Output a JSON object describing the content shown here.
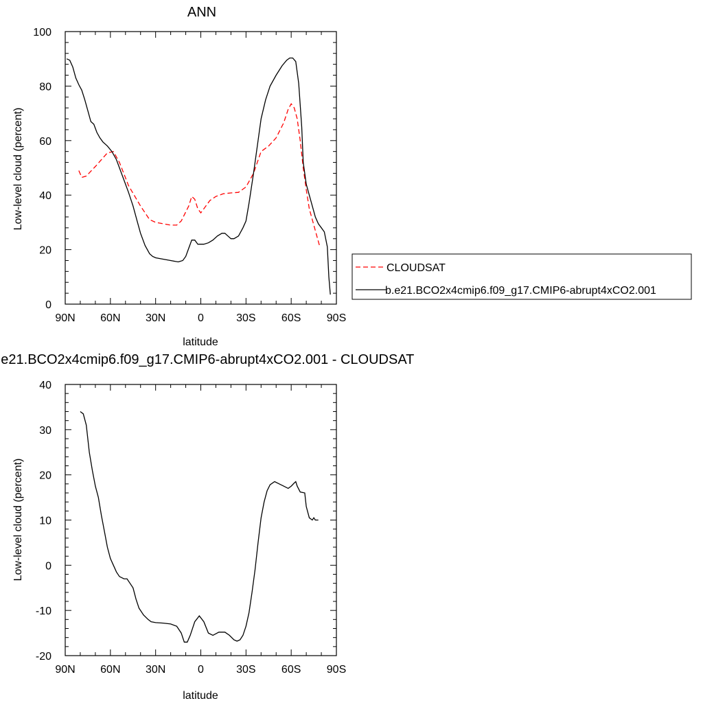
{
  "chart_data": [
    {
      "type": "line",
      "title": "ANN",
      "xlabel": "latitude",
      "ylabel": "Low-level cloud (percent)",
      "xlim": [
        90,
        -90
      ],
      "ylim": [
        0,
        100
      ],
      "x_ticks": [
        90,
        60,
        30,
        0,
        -30,
        -60,
        -90
      ],
      "x_tick_labels": [
        "90N",
        "60N",
        "30N",
        "0",
        "30S",
        "60S",
        "90S"
      ],
      "y_ticks": [
        0,
        20,
        40,
        60,
        80,
        100
      ],
      "y_tick_labels": [
        "0",
        "20",
        "40",
        "60",
        "80",
        "100"
      ],
      "legend_position": "right",
      "series": [
        {
          "name": "CLOUDSAT",
          "color": "#ff0000",
          "dash": "dashed",
          "points": [
            [
              81,
              49
            ],
            [
              79,
              46.5
            ],
            [
              76,
              47
            ],
            [
              70,
              50.5
            ],
            [
              62,
              55.5
            ],
            [
              58,
              56
            ],
            [
              54,
              52
            ],
            [
              48,
              43.5
            ],
            [
              40,
              36
            ],
            [
              34,
              31
            ],
            [
              30,
              30
            ],
            [
              25,
              29.5
            ],
            [
              20,
              29
            ],
            [
              16,
              29
            ],
            [
              13,
              30.5
            ],
            [
              8,
              36
            ],
            [
              6,
              39.5
            ],
            [
              4,
              38.5
            ],
            [
              2,
              35
            ],
            [
              0,
              33.5
            ],
            [
              -2,
              35
            ],
            [
              -6,
              38
            ],
            [
              -10,
              39.5
            ],
            [
              -15,
              40.5
            ],
            [
              -20,
              40.8
            ],
            [
              -25,
              41
            ],
            [
              -30,
              43
            ],
            [
              -35,
              48
            ],
            [
              -40,
              56
            ],
            [
              -45,
              58
            ],
            [
              -50,
              61
            ],
            [
              -55,
              66.5
            ],
            [
              -58,
              71.5
            ],
            [
              -60,
              73.5
            ],
            [
              -62,
              72
            ],
            [
              -64,
              68
            ],
            [
              -66,
              60
            ],
            [
              -68,
              50
            ],
            [
              -70,
              42
            ],
            [
              -72,
              35
            ],
            [
              -75,
              29
            ],
            [
              -79,
              21
            ]
          ]
        },
        {
          "name": "b.e21.BCO2x4cmip6.f09_g17.CMIP6-abrupt4xCO2.001",
          "color": "#000000",
          "dash": "solid",
          "points": [
            [
              89,
              90
            ],
            [
              87,
              89.5
            ],
            [
              85,
              87
            ],
            [
              83,
              83
            ],
            [
              81,
              80.5
            ],
            [
              79,
              78.5
            ],
            [
              77,
              75
            ],
            [
              75,
              71
            ],
            [
              73,
              67
            ],
            [
              71,
              66
            ],
            [
              69,
              63
            ],
            [
              67,
              61
            ],
            [
              65,
              59.5
            ],
            [
              62,
              58
            ],
            [
              59,
              56
            ],
            [
              56,
              53
            ],
            [
              52,
              47
            ],
            [
              48,
              41
            ],
            [
              45,
              36
            ],
            [
              42,
              30
            ],
            [
              40,
              26
            ],
            [
              37,
              21.5
            ],
            [
              34,
              18.5
            ],
            [
              32,
              17.5
            ],
            [
              30,
              17
            ],
            [
              25,
              16.5
            ],
            [
              20,
              16
            ],
            [
              15,
              15.5
            ],
            [
              12,
              16
            ],
            [
              10,
              17.5
            ],
            [
              8,
              20.5
            ],
            [
              6,
              23.5
            ],
            [
              4,
              23.5
            ],
            [
              2,
              22
            ],
            [
              0,
              22
            ],
            [
              -2,
              22
            ],
            [
              -5,
              22.5
            ],
            [
              -8,
              23.5
            ],
            [
              -11,
              25
            ],
            [
              -14,
              26
            ],
            [
              -16,
              26
            ],
            [
              -18,
              25
            ],
            [
              -20,
              24
            ],
            [
              -22,
              24
            ],
            [
              -25,
              25
            ],
            [
              -28,
              28
            ],
            [
              -30,
              30.5
            ],
            [
              -32,
              37
            ],
            [
              -35,
              48
            ],
            [
              -38,
              60
            ],
            [
              -40,
              68
            ],
            [
              -43,
              75
            ],
            [
              -46,
              80
            ],
            [
              -50,
              84
            ],
            [
              -54,
              87.5
            ],
            [
              -57,
              89.5
            ],
            [
              -59,
              90.3
            ],
            [
              -61,
              90.3
            ],
            [
              -63,
              89
            ],
            [
              -65,
              81
            ],
            [
              -67,
              65
            ],
            [
              -68,
              52
            ],
            [
              -70,
              44
            ],
            [
              -72,
              40
            ],
            [
              -74,
              36
            ],
            [
              -76,
              32
            ],
            [
              -78,
              29.5
            ],
            [
              -80,
              28
            ],
            [
              -82,
              26.5
            ],
            [
              -84,
              21
            ],
            [
              -85,
              10
            ],
            [
              -86,
              3.5
            ]
          ]
        }
      ]
    },
    {
      "type": "line",
      "title": "b.e21.BCO2x4cmip6.f09_g17.CMIP6-abrupt4xCO2.001 - CLOUDSAT",
      "xlabel": "latitude",
      "ylabel": "Low-level cloud (percent)",
      "xlim": [
        90,
        -90
      ],
      "ylim": [
        -20,
        40
      ],
      "x_ticks": [
        90,
        60,
        30,
        0,
        -30,
        -60,
        -90
      ],
      "x_tick_labels": [
        "90N",
        "60N",
        "30N",
        "0",
        "30S",
        "60S",
        "90S"
      ],
      "y_ticks": [
        -20,
        -10,
        0,
        10,
        20,
        30,
        40
      ],
      "y_tick_labels": [
        "-20",
        "-10",
        "0",
        "10",
        "20",
        "30",
        "40"
      ],
      "series": [
        {
          "color": "#000000",
          "dash": "solid",
          "points": [
            [
              80,
              34
            ],
            [
              78,
              33.5
            ],
            [
              76,
              31
            ],
            [
              74,
              25
            ],
            [
              72,
              21
            ],
            [
              70,
              17.5
            ],
            [
              68,
              15
            ],
            [
              66,
              11
            ],
            [
              64,
              7.5
            ],
            [
              62,
              4
            ],
            [
              60,
              1.5
            ],
            [
              58,
              0
            ],
            [
              56,
              -1.5
            ],
            [
              54,
              -2.5
            ],
            [
              51,
              -3
            ],
            [
              49,
              -3
            ],
            [
              47,
              -4
            ],
            [
              45,
              -5
            ],
            [
              43,
              -7.5
            ],
            [
              41,
              -9.5
            ],
            [
              38,
              -11
            ],
            [
              35,
              -12
            ],
            [
              33,
              -12.5
            ],
            [
              30,
              -12.7
            ],
            [
              25,
              -12.8
            ],
            [
              20,
              -13
            ],
            [
              16,
              -13.5
            ],
            [
              13,
              -15
            ],
            [
              11,
              -17
            ],
            [
              9,
              -17
            ],
            [
              7,
              -15.5
            ],
            [
              4,
              -12.5
            ],
            [
              1,
              -11.2
            ],
            [
              -2,
              -12.5
            ],
            [
              -5,
              -15
            ],
            [
              -8,
              -15.5
            ],
            [
              -12,
              -14.8
            ],
            [
              -16,
              -14.8
            ],
            [
              -19,
              -15.5
            ],
            [
              -22,
              -16.5
            ],
            [
              -24,
              -16.8
            ],
            [
              -26,
              -16.5
            ],
            [
              -28,
              -15.5
            ],
            [
              -30,
              -13.5
            ],
            [
              -32,
              -10.5
            ],
            [
              -34,
              -6
            ],
            [
              -36,
              -1
            ],
            [
              -38,
              5
            ],
            [
              -40,
              10.5
            ],
            [
              -42,
              14
            ],
            [
              -44,
              16.5
            ],
            [
              -46,
              17.8
            ],
            [
              -49,
              18.5
            ],
            [
              -52,
              18
            ],
            [
              -55,
              17.5
            ],
            [
              -58,
              17
            ],
            [
              -60,
              17.5
            ],
            [
              -62,
              18.2
            ],
            [
              -63,
              18.5
            ],
            [
              -64,
              17.5
            ],
            [
              -66,
              16.2
            ],
            [
              -69,
              16
            ],
            [
              -70,
              13
            ],
            [
              -72,
              10.5
            ],
            [
              -74,
              10
            ],
            [
              -75,
              10.5
            ],
            [
              -76,
              10
            ],
            [
              -78,
              10
            ]
          ]
        }
      ]
    }
  ]
}
